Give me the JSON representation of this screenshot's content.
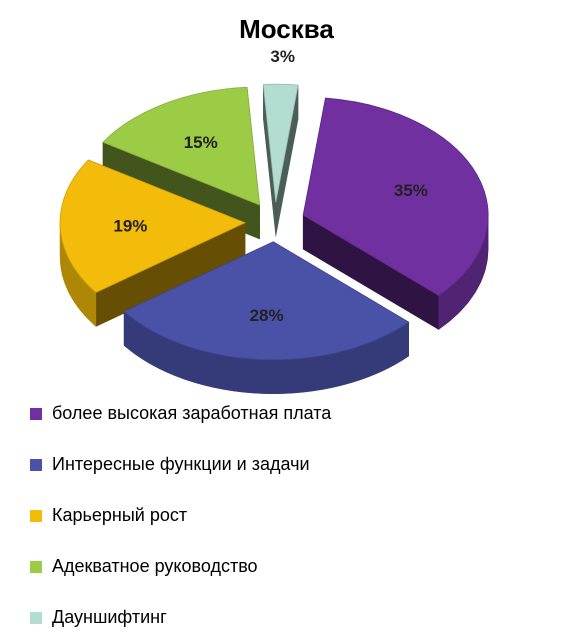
{
  "chart_data": {
    "type": "pie",
    "title": "Москва",
    "style": "3D exploded pie",
    "legend_position": "bottom",
    "slices": [
      {
        "label": "более высокая заработная плата",
        "value": 35,
        "display": "35%",
        "color": "#7030a0"
      },
      {
        "label": "Интересные функции и задачи",
        "value": 28,
        "display": "28%",
        "color": "#4a52a8"
      },
      {
        "label": "Карьерный рост",
        "value": 19,
        "display": "19%",
        "color": "#f3bb0a"
      },
      {
        "label": "Адекватное руководство",
        "value": 15,
        "display": "15%",
        "color": "#9ccb45"
      },
      {
        "label": "Дауншифтинг",
        "value": 3,
        "display": "3%",
        "color": "#b3ddd0"
      }
    ]
  }
}
